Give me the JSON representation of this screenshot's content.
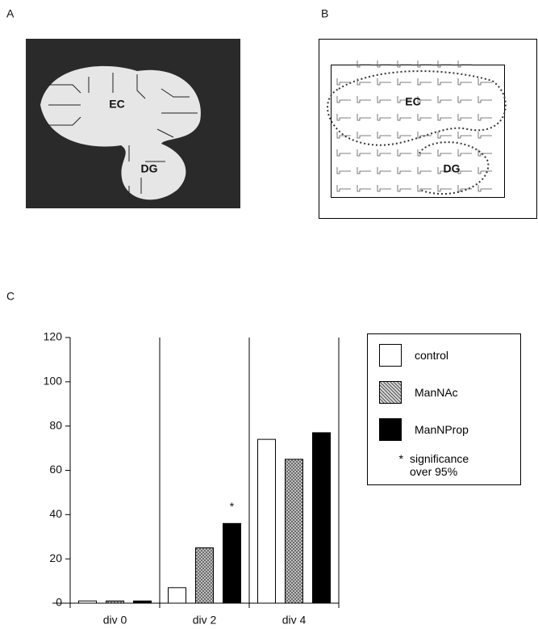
{
  "panels": {
    "a": {
      "label": "A",
      "regions": [
        "EC",
        "DG"
      ]
    },
    "b": {
      "label": "B",
      "regions": [
        "EC",
        "DG"
      ]
    },
    "c": {
      "label": "C"
    }
  },
  "chart_data": {
    "type": "bar",
    "categories": [
      "div 0",
      "div 2",
      "div 4"
    ],
    "series": [
      {
        "name": "control",
        "color": "#ffffff",
        "values": [
          1,
          7,
          74
        ]
      },
      {
        "name": "ManNAc",
        "color": "#b8b8b8",
        "hatch": true,
        "values": [
          1,
          25,
          65
        ]
      },
      {
        "name": "ManNProp",
        "color": "#000000",
        "values": [
          1,
          36,
          77
        ]
      }
    ],
    "ylim": [
      0,
      120
    ],
    "yticks": [
      0,
      20,
      40,
      60,
      80,
      100,
      120
    ],
    "significance_marker": "*",
    "significance_note": "significance over 95%"
  }
}
